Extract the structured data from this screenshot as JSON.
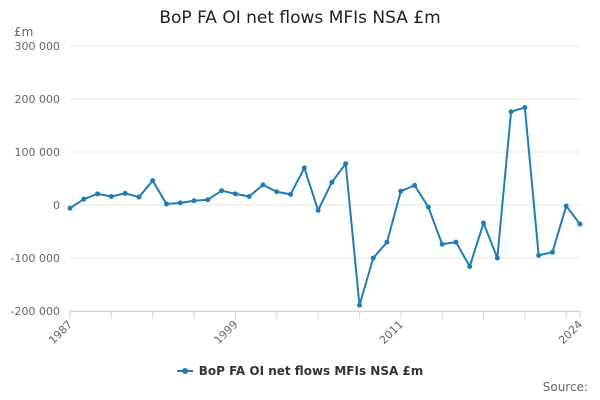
{
  "colors": {
    "series": "#1f7db5",
    "grid": "#e6e6e6",
    "axis": "#ccd6eb",
    "text": "#666666"
  },
  "source_label": "Source:",
  "chart_data": {
    "type": "line",
    "title": "BoP FA OI net flows MFIs NSA £m",
    "ylabel": "£m",
    "xlabel": "",
    "ylim": [
      -200000,
      300000
    ],
    "xlim": [
      1987,
      2024
    ],
    "yticks": [
      -200000,
      -100000,
      0,
      100000,
      200000,
      300000
    ],
    "ytick_labels": [
      "-200 000",
      "-100 000",
      "0",
      "100 000",
      "200 000",
      "300 000"
    ],
    "xticks_labeled": [
      1987,
      1999,
      2011,
      2024
    ],
    "xticks_minor": [
      1990,
      1993,
      1996,
      2002,
      2005,
      2008,
      2014,
      2017,
      2020,
      2023
    ],
    "grid": true,
    "legend_position": "bottom",
    "x": [
      1987,
      1988,
      1989,
      1990,
      1991,
      1992,
      1993,
      1994,
      1995,
      1996,
      1997,
      1998,
      1999,
      2000,
      2001,
      2002,
      2003,
      2004,
      2005,
      2006,
      2007,
      2008,
      2009,
      2010,
      2011,
      2012,
      2013,
      2014,
      2015,
      2016,
      2017,
      2018,
      2019,
      2020,
      2021,
      2022,
      2023,
      2024
    ],
    "series": [
      {
        "name": "BoP FA OI net flows MFIs NSA £m",
        "values": [
          -6000,
          11000,
          21000,
          16000,
          22000,
          15000,
          46000,
          2000,
          4000,
          8000,
          10000,
          27000,
          21000,
          16000,
          38000,
          25000,
          20000,
          70000,
          -10000,
          43000,
          78000,
          -189000,
          -100000,
          -70000,
          26000,
          37000,
          -4000,
          -74000,
          -70000,
          -116000,
          -34000,
          -100000,
          176000,
          184000,
          -95000,
          -89000,
          -2000,
          -36000
        ]
      }
    ]
  }
}
